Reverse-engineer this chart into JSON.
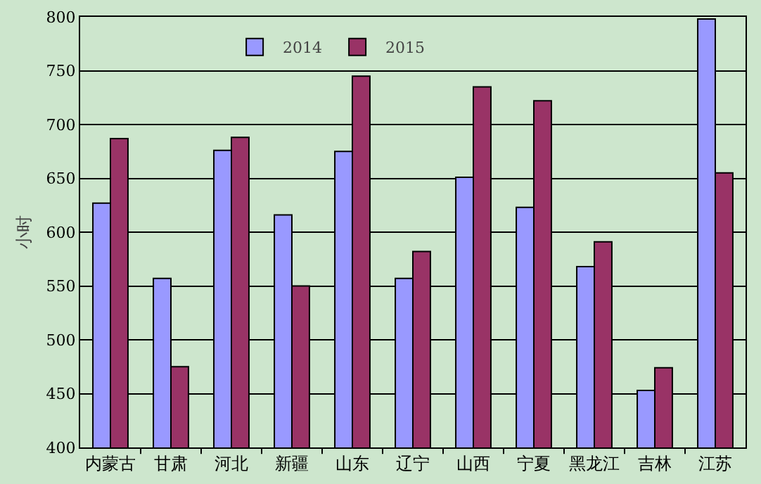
{
  "chart_data": {
    "type": "bar",
    "ylabel": "小时",
    "categories": [
      "内蒙古",
      "甘肃",
      "河北",
      "新疆",
      "山东",
      "辽宁",
      "山西",
      "宁夏",
      "黑龙江",
      "吉林",
      "江苏"
    ],
    "series": [
      {
        "name": "2014",
        "color": "#9999ff",
        "values": [
          627,
          557,
          676,
          616,
          675,
          557,
          651,
          623,
          568,
          453,
          798
        ]
      },
      {
        "name": "2015",
        "color": "#993366",
        "values": [
          687,
          475,
          688,
          550,
          745,
          582,
          735,
          722,
          591,
          474,
          655
        ]
      }
    ],
    "ylim": [
      400,
      800
    ],
    "yticks": [
      400,
      450,
      500,
      550,
      600,
      650,
      700,
      750,
      800
    ],
    "grid": "y",
    "legend": "top"
  }
}
